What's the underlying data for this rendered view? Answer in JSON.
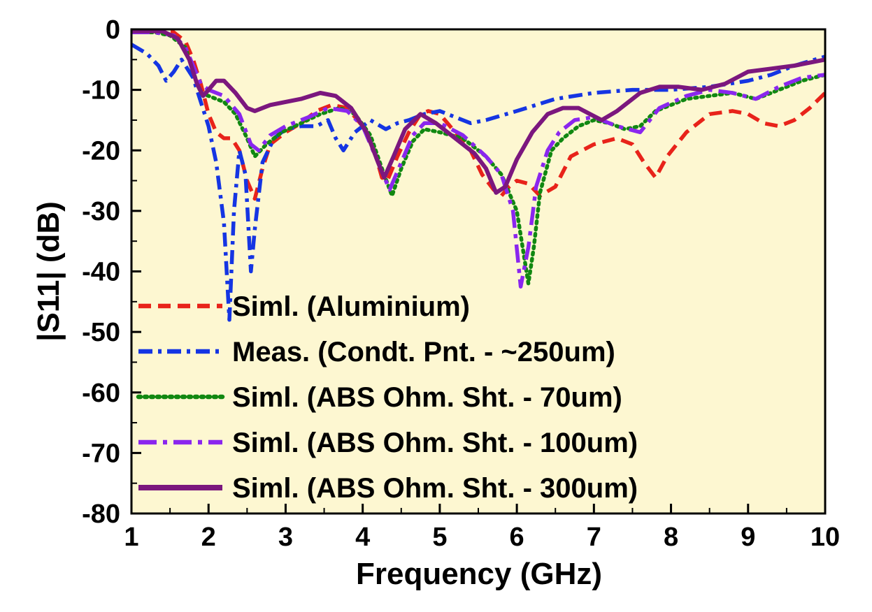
{
  "chart_data": {
    "type": "line",
    "xlabel": "Frequency (GHz)",
    "ylabel": "|S11| (dB)",
    "xlim": [
      1,
      10
    ],
    "ylim": [
      -80,
      0
    ],
    "xticks": [
      1,
      2,
      3,
      4,
      5,
      6,
      7,
      8,
      9,
      10
    ],
    "yticks": [
      0,
      -10,
      -20,
      -30,
      -40,
      -50,
      -60,
      -70,
      -80
    ],
    "x_tick_labels": [
      "1",
      "2",
      "3",
      "4",
      "5",
      "6",
      "7",
      "8",
      "9",
      "10"
    ],
    "y_tick_labels": [
      "0",
      "-10",
      "-20",
      "-30",
      "-40",
      "-50",
      "-60",
      "-70",
      "-80"
    ],
    "grid": false,
    "legend_position": "bottom-left",
    "plot_background": "#fdf7d1",
    "series": [
      {
        "name": "Siml. (Aluminium)",
        "color": "#e8231a",
        "style": "dashed",
        "points": [
          [
            1,
            -0.3
          ],
          [
            1.3,
            -0.3
          ],
          [
            1.55,
            -0.5
          ],
          [
            1.7,
            -2
          ],
          [
            1.8,
            -5
          ],
          [
            1.9,
            -9
          ],
          [
            2.0,
            -14
          ],
          [
            2.1,
            -17
          ],
          [
            2.2,
            -18
          ],
          [
            2.3,
            -18
          ],
          [
            2.4,
            -20
          ],
          [
            2.5,
            -25
          ],
          [
            2.6,
            -28
          ],
          [
            2.7,
            -23
          ],
          [
            2.8,
            -19
          ],
          [
            3.0,
            -17
          ],
          [
            3.2,
            -15.5
          ],
          [
            3.4,
            -13.5
          ],
          [
            3.6,
            -12.5
          ],
          [
            3.8,
            -13
          ],
          [
            4.0,
            -16
          ],
          [
            4.15,
            -20
          ],
          [
            4.25,
            -24.5
          ],
          [
            4.32,
            -25
          ],
          [
            4.45,
            -21
          ],
          [
            4.6,
            -17
          ],
          [
            4.75,
            -14
          ],
          [
            4.85,
            -13.5
          ],
          [
            5.0,
            -14
          ],
          [
            5.2,
            -17
          ],
          [
            5.4,
            -20
          ],
          [
            5.55,
            -24
          ],
          [
            5.7,
            -26.5
          ],
          [
            5.8,
            -27.5
          ],
          [
            5.9,
            -26
          ],
          [
            6.0,
            -25
          ],
          [
            6.15,
            -25.5
          ],
          [
            6.3,
            -27.5
          ],
          [
            6.5,
            -26
          ],
          [
            6.7,
            -21
          ],
          [
            7.0,
            -19
          ],
          [
            7.3,
            -18
          ],
          [
            7.5,
            -19
          ],
          [
            7.65,
            -22
          ],
          [
            7.8,
            -24.5
          ],
          [
            7.95,
            -21
          ],
          [
            8.2,
            -17
          ],
          [
            8.5,
            -14
          ],
          [
            8.8,
            -13.5
          ],
          [
            9.0,
            -14
          ],
          [
            9.2,
            -15.5
          ],
          [
            9.4,
            -16
          ],
          [
            9.6,
            -15
          ],
          [
            9.8,
            -13
          ],
          [
            10,
            -10.5
          ]
        ]
      },
      {
        "name": "Meas. (Condt. Pnt. - ~250um)",
        "color": "#1535e3",
        "style": "dash-dot",
        "points": [
          [
            1,
            -2.5
          ],
          [
            1.2,
            -4
          ],
          [
            1.35,
            -6
          ],
          [
            1.45,
            -8.5
          ],
          [
            1.55,
            -7
          ],
          [
            1.65,
            -5
          ],
          [
            1.8,
            -8
          ],
          [
            1.9,
            -12
          ],
          [
            2.0,
            -16
          ],
          [
            2.1,
            -22
          ],
          [
            2.2,
            -32
          ],
          [
            2.27,
            -48
          ],
          [
            2.33,
            -30
          ],
          [
            2.4,
            -20
          ],
          [
            2.48,
            -24
          ],
          [
            2.55,
            -40
          ],
          [
            2.6,
            -33
          ],
          [
            2.7,
            -22
          ],
          [
            2.85,
            -18
          ],
          [
            3.0,
            -16.5
          ],
          [
            3.2,
            -16
          ],
          [
            3.4,
            -16
          ],
          [
            3.55,
            -15
          ],
          [
            3.65,
            -18
          ],
          [
            3.75,
            -20
          ],
          [
            3.9,
            -17
          ],
          [
            4.1,
            -15
          ],
          [
            4.3,
            -16.5
          ],
          [
            4.45,
            -15.5
          ],
          [
            4.6,
            -15
          ],
          [
            4.8,
            -14
          ],
          [
            5.0,
            -13.5
          ],
          [
            5.2,
            -14.5
          ],
          [
            5.4,
            -15.5
          ],
          [
            5.6,
            -15
          ],
          [
            6.0,
            -13.5
          ],
          [
            6.5,
            -11.5
          ],
          [
            7.0,
            -10.5
          ],
          [
            7.5,
            -10
          ],
          [
            8.0,
            -10
          ],
          [
            8.5,
            -9.5
          ],
          [
            9.0,
            -8.5
          ],
          [
            9.3,
            -7.5
          ],
          [
            9.6,
            -6
          ],
          [
            10,
            -4.5
          ]
        ]
      },
      {
        "name": "Siml. (ABS Ohm. Sht. - 70um)",
        "color": "#118811",
        "style": "dotted",
        "points": [
          [
            1,
            -0.5
          ],
          [
            1.3,
            -0.5
          ],
          [
            1.5,
            -1
          ],
          [
            1.7,
            -3
          ],
          [
            1.8,
            -7
          ],
          [
            1.9,
            -10.5
          ],
          [
            2.0,
            -11
          ],
          [
            2.1,
            -11.5
          ],
          [
            2.2,
            -12
          ],
          [
            2.35,
            -14
          ],
          [
            2.5,
            -18
          ],
          [
            2.6,
            -21
          ],
          [
            2.75,
            -19
          ],
          [
            2.95,
            -17
          ],
          [
            3.2,
            -15.5
          ],
          [
            3.45,
            -14
          ],
          [
            3.7,
            -13
          ],
          [
            3.9,
            -14
          ],
          [
            4.1,
            -17.5
          ],
          [
            4.25,
            -23
          ],
          [
            4.38,
            -27.5
          ],
          [
            4.5,
            -23
          ],
          [
            4.65,
            -18.5
          ],
          [
            4.8,
            -16.5
          ],
          [
            5.0,
            -17
          ],
          [
            5.3,
            -18
          ],
          [
            5.6,
            -21
          ],
          [
            5.8,
            -24
          ],
          [
            6.0,
            -30
          ],
          [
            6.1,
            -38
          ],
          [
            6.15,
            -42
          ],
          [
            6.22,
            -36
          ],
          [
            6.3,
            -27
          ],
          [
            6.45,
            -20
          ],
          [
            6.6,
            -18
          ],
          [
            6.8,
            -16
          ],
          [
            7.0,
            -15
          ],
          [
            7.2,
            -15.5
          ],
          [
            7.4,
            -16.5
          ],
          [
            7.6,
            -16
          ],
          [
            7.8,
            -13.5
          ],
          [
            8.2,
            -11.5
          ],
          [
            8.5,
            -11
          ],
          [
            8.8,
            -10.5
          ],
          [
            9.1,
            -11.5
          ],
          [
            9.4,
            -10
          ],
          [
            9.7,
            -8.5
          ],
          [
            10,
            -7.5
          ]
        ]
      },
      {
        "name": "Siml. (ABS Ohm. Sht. - 100um)",
        "color": "#8a26ee",
        "style": "long-dash-dot",
        "points": [
          [
            1,
            -0.5
          ],
          [
            1.3,
            -0.5
          ],
          [
            1.55,
            -1
          ],
          [
            1.7,
            -3
          ],
          [
            1.8,
            -6
          ],
          [
            1.9,
            -9
          ],
          [
            2.0,
            -10
          ],
          [
            2.2,
            -11
          ],
          [
            2.4,
            -14
          ],
          [
            2.55,
            -19
          ],
          [
            2.65,
            -20
          ],
          [
            2.8,
            -17.5
          ],
          [
            3.0,
            -16
          ],
          [
            3.3,
            -14.5
          ],
          [
            3.55,
            -13
          ],
          [
            3.8,
            -13.5
          ],
          [
            4.0,
            -16
          ],
          [
            4.2,
            -22
          ],
          [
            4.35,
            -26.5
          ],
          [
            4.5,
            -22
          ],
          [
            4.65,
            -17.5
          ],
          [
            4.8,
            -15.5
          ],
          [
            5.0,
            -15.5
          ],
          [
            5.3,
            -17.5
          ],
          [
            5.6,
            -21
          ],
          [
            5.8,
            -24
          ],
          [
            5.95,
            -30
          ],
          [
            6.05,
            -42.5
          ],
          [
            6.15,
            -36
          ],
          [
            6.25,
            -26
          ],
          [
            6.4,
            -20
          ],
          [
            6.55,
            -17
          ],
          [
            6.75,
            -15
          ],
          [
            7.0,
            -14.5
          ],
          [
            7.3,
            -16
          ],
          [
            7.6,
            -17
          ],
          [
            7.85,
            -13
          ],
          [
            8.2,
            -11
          ],
          [
            8.5,
            -10
          ],
          [
            8.8,
            -10.5
          ],
          [
            9.1,
            -11.5
          ],
          [
            9.4,
            -9.5
          ],
          [
            9.7,
            -8
          ],
          [
            10,
            -7.5
          ]
        ]
      },
      {
        "name": "Siml. (ABS Ohm. Sht. - 300um)",
        "color": "#7b177e",
        "style": "solid",
        "points": [
          [
            1,
            -0.3
          ],
          [
            1.4,
            -0.3
          ],
          [
            1.6,
            -1.5
          ],
          [
            1.75,
            -5
          ],
          [
            1.85,
            -9
          ],
          [
            1.93,
            -11
          ],
          [
            2.0,
            -10
          ],
          [
            2.1,
            -8.5
          ],
          [
            2.2,
            -8.5
          ],
          [
            2.35,
            -10.5
          ],
          [
            2.5,
            -13
          ],
          [
            2.6,
            -13.5
          ],
          [
            2.8,
            -12.5
          ],
          [
            3.0,
            -12
          ],
          [
            3.2,
            -11.5
          ],
          [
            3.45,
            -10.5
          ],
          [
            3.65,
            -11
          ],
          [
            3.85,
            -13
          ],
          [
            4.05,
            -17
          ],
          [
            4.2,
            -22
          ],
          [
            4.28,
            -24.5
          ],
          [
            4.4,
            -21
          ],
          [
            4.55,
            -16.5
          ],
          [
            4.75,
            -14
          ],
          [
            4.95,
            -15.5
          ],
          [
            5.2,
            -18
          ],
          [
            5.45,
            -20.5
          ],
          [
            5.6,
            -23
          ],
          [
            5.73,
            -27
          ],
          [
            5.85,
            -26
          ],
          [
            6.0,
            -21.5
          ],
          [
            6.2,
            -17
          ],
          [
            6.4,
            -14
          ],
          [
            6.6,
            -13
          ],
          [
            6.8,
            -13
          ],
          [
            6.95,
            -14
          ],
          [
            7.1,
            -15
          ],
          [
            7.3,
            -13.5
          ],
          [
            7.6,
            -10.5
          ],
          [
            7.85,
            -9.5
          ],
          [
            8.1,
            -9.5
          ],
          [
            8.4,
            -10
          ],
          [
            8.7,
            -9
          ],
          [
            9.0,
            -7
          ],
          [
            9.3,
            -6.5
          ],
          [
            9.6,
            -6
          ],
          [
            10,
            -5
          ]
        ]
      }
    ]
  }
}
